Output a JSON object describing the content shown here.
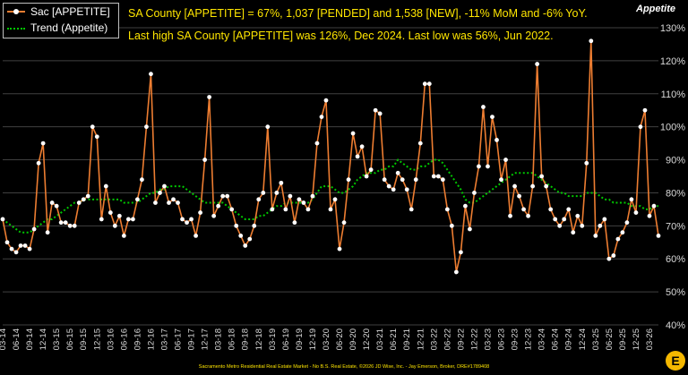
{
  "chart_data": {
    "type": "line",
    "headline1": "SA County [APPETITE] = 67%, 1,037 [PENDED] and 1,538 [NEW], -11% MoM and -6% YoY.",
    "headline2": "Last high SA County [APPETITE] was 126%, Dec 2024. Last low was 56%, Jun 2022.",
    "ylabel": "Appetite",
    "ylim": [
      40,
      130
    ],
    "yticks": [
      "40%",
      "50%",
      "60%",
      "70%",
      "80%",
      "90%",
      "100%",
      "110%",
      "120%",
      "130%"
    ],
    "grid": true,
    "legend_position": "top-left",
    "x_tick_labels": [
      "03-14",
      "06-14",
      "09-14",
      "12-14",
      "03-15",
      "06-15",
      "09-15",
      "12-15",
      "03-16",
      "06-16",
      "09-16",
      "12-16",
      "03-17",
      "06-17",
      "09-17",
      "12-17",
      "03-18",
      "06-18",
      "09-18",
      "12-18",
      "03-19",
      "06-19",
      "09-19",
      "12-19",
      "03-20",
      "06-20",
      "09-20",
      "12-20",
      "03-21",
      "06-21",
      "09-21",
      "12-21",
      "03-22",
      "06-22",
      "09-22",
      "12-22",
      "03-23",
      "06-23",
      "09-23",
      "12-23",
      "03-24",
      "06-24",
      "09-24",
      "12-24",
      "03-25",
      "06-25",
      "09-25",
      "12-25",
      "03-26"
    ],
    "series": [
      {
        "name": "Sac [APPETITE]",
        "color": "#ed7d31",
        "values": [
          72,
          65,
          63,
          62,
          64,
          64,
          63,
          69,
          89,
          95,
          68,
          77,
          76,
          71,
          71,
          70,
          70,
          77,
          78,
          79,
          100,
          97,
          72,
          82,
          74,
          70,
          73,
          67,
          72,
          72,
          78,
          84,
          100,
          116,
          77,
          80,
          82,
          77,
          78,
          77,
          72,
          71,
          72,
          67,
          74,
          90,
          109,
          73,
          76,
          79,
          79,
          75,
          70,
          67,
          64,
          66,
          70,
          78,
          80,
          100,
          75,
          80,
          83,
          75,
          79,
          71,
          78,
          77,
          75,
          79,
          95,
          103,
          108,
          75,
          78,
          63,
          71,
          84,
          98,
          91,
          94,
          85,
          87,
          105,
          104,
          84,
          82,
          81,
          86,
          84,
          81,
          75,
          84,
          95,
          113,
          113,
          85,
          85,
          84,
          75,
          70,
          56,
          62,
          76,
          69,
          80,
          88,
          106,
          88,
          103,
          96,
          84,
          90,
          73,
          82,
          79,
          75,
          73,
          82,
          119,
          85,
          82,
          75,
          72,
          70,
          72,
          75,
          68,
          73,
          70,
          89,
          126,
          67,
          70,
          72,
          60,
          61,
          66,
          68,
          71,
          78,
          74,
          100,
          105,
          73,
          76,
          67
        ]
      },
      {
        "name": "Trend (Appetite)",
        "color": "#00c800",
        "values": [
          72,
          71,
          70,
          69,
          68,
          68,
          68,
          69,
          70,
          71,
          72,
          72,
          73,
          74,
          75,
          76,
          77,
          77,
          78,
          78,
          78,
          78,
          78,
          78,
          78,
          78,
          78,
          77,
          77,
          77,
          77,
          78,
          79,
          80,
          80,
          81,
          81,
          82,
          82,
          82,
          82,
          81,
          80,
          79,
          78,
          77,
          77,
          77,
          77,
          77,
          76,
          75,
          74,
          73,
          72,
          72,
          72,
          73,
          73,
          74,
          75,
          76,
          76,
          77,
          77,
          77,
          77,
          77,
          77,
          78,
          80,
          82,
          82,
          82,
          81,
          80,
          80,
          81,
          82,
          84,
          85,
          86,
          86,
          86,
          87,
          87,
          88,
          88,
          90,
          89,
          88,
          87,
          87,
          88,
          88,
          89,
          90,
          90,
          89,
          87,
          85,
          83,
          81,
          78,
          77,
          77,
          78,
          79,
          80,
          81,
          82,
          83,
          84,
          85,
          86,
          86,
          86,
          86,
          86,
          85,
          84,
          83,
          82,
          81,
          80,
          80,
          79,
          79,
          79,
          79,
          80,
          80,
          80,
          79,
          78,
          78,
          77,
          77,
          77,
          77,
          76,
          76,
          76,
          75,
          75,
          76,
          76
        ]
      }
    ]
  },
  "legend": {
    "sac": "Sac [APPETITE]",
    "trend": "Trend (Appetite)"
  },
  "footer": "Sacramento Metro Residential Real Estate Market - No B.S. Real Estate, ©2026 JD Wise, Inc. - Jay Emerson, Broker, DRE#1789408",
  "colors": {
    "headline": "#ffe600",
    "grid": "#404040"
  }
}
